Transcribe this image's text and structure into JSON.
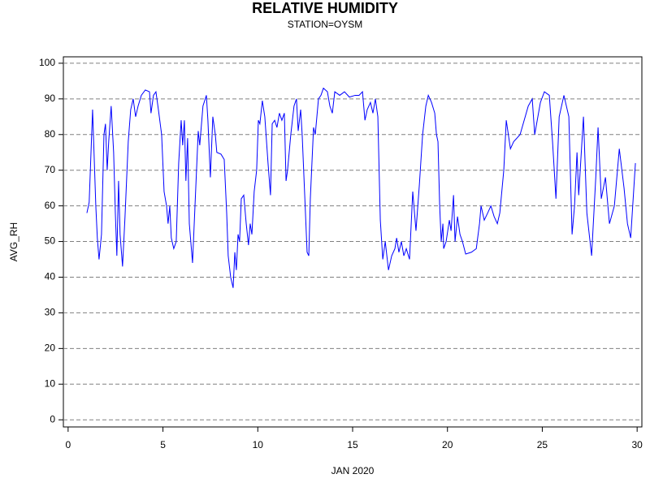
{
  "chart_data": {
    "type": "line",
    "title": "RELATIVE HUMIDITY",
    "subtitle": "STATION=OYSM",
    "x_label": "JAN 2020",
    "y_label": "AVG_RH",
    "xlim": [
      -0.25,
      30.25
    ],
    "xticks": [
      0,
      5,
      10,
      15,
      20,
      25,
      30
    ],
    "ylim": [
      -2,
      101.8
    ],
    "yticks": [
      0,
      10,
      20,
      30,
      40,
      50,
      60,
      70,
      80,
      90,
      100
    ],
    "grid": true,
    "x": [
      0.99,
      1.11,
      1.29,
      1.46,
      1.54,
      1.63,
      1.76,
      1.89,
      1.97,
      2.06,
      2.14,
      2.27,
      2.4,
      2.49,
      2.57,
      2.66,
      2.74,
      2.87,
      3.0,
      3.17,
      3.3,
      3.43,
      3.56,
      3.69,
      3.86,
      4.07,
      4.29,
      4.37,
      4.5,
      4.63,
      4.76,
      4.93,
      5.06,
      5.19,
      5.27,
      5.36,
      5.44,
      5.57,
      5.7,
      5.83,
      5.96,
      6.04,
      6.13,
      6.21,
      6.3,
      6.39,
      6.56,
      6.73,
      6.86,
      6.94,
      7.11,
      7.29,
      7.37,
      7.5,
      7.63,
      7.76,
      7.84,
      8.06,
      8.23,
      8.36,
      8.44,
      8.57,
      8.7,
      8.79,
      8.87,
      8.96,
      9.04,
      9.13,
      9.26,
      9.39,
      9.51,
      9.6,
      9.69,
      9.81,
      9.94,
      10.03,
      10.11,
      10.24,
      10.37,
      10.54,
      10.67,
      10.76,
      10.89,
      11.01,
      11.14,
      11.27,
      11.4,
      11.49,
      11.57,
      11.74,
      11.91,
      12.04,
      12.13,
      12.26,
      12.34,
      12.6,
      12.69,
      12.77,
      12.94,
      13.03,
      13.2,
      13.33,
      13.46,
      13.67,
      13.8,
      13.93,
      14.06,
      14.32,
      14.57,
      14.83,
      15.13,
      15.34,
      15.52,
      15.65,
      15.77,
      15.94,
      16.07,
      16.2,
      16.33,
      16.46,
      16.59,
      16.72,
      16.89,
      17.06,
      17.23,
      17.32,
      17.44,
      17.57,
      17.7,
      17.83,
      18.0,
      18.17,
      18.34,
      18.52,
      18.69,
      18.86,
      18.99,
      19.16,
      19.33,
      19.42,
      19.5,
      19.59,
      19.67,
      19.76,
      19.8,
      19.93,
      20.1,
      20.19,
      20.32,
      20.4,
      20.53,
      20.66,
      20.79,
      20.96,
      21.26,
      21.52,
      21.69,
      21.77,
      21.94,
      22.12,
      22.29,
      22.46,
      22.63,
      22.76,
      22.97,
      23.1,
      23.32,
      23.49,
      23.83,
      24.26,
      24.47,
      24.6,
      24.9,
      25.11,
      25.37,
      25.54,
      25.72,
      25.89,
      26.14,
      26.4,
      26.57,
      26.7,
      26.83,
      26.92,
      27.17,
      27.35,
      27.6,
      27.82,
      27.94,
      28.11,
      28.33,
      28.54,
      28.8,
      29.06,
      29.31,
      29.49,
      29.66,
      29.91
    ],
    "series": [
      {
        "name": "AVG_RH",
        "color": "#0000ff",
        "values": [
          58,
          61,
          87,
          60,
          51,
          45,
          52,
          80,
          83,
          70,
          78,
          88,
          75,
          58,
          46,
          67,
          52,
          43,
          57,
          78,
          87,
          90,
          85,
          88,
          91,
          92.5,
          92,
          86,
          91,
          92,
          87,
          80,
          64,
          60,
          55,
          60,
          51,
          48,
          50,
          72,
          84,
          77,
          84,
          67,
          79,
          55,
          44,
          65,
          81,
          77,
          88,
          91,
          84,
          68,
          85,
          80,
          75,
          74.5,
          73,
          58,
          46,
          40,
          37,
          47,
          42,
          52,
          50,
          62,
          63,
          55,
          49,
          55,
          52,
          64,
          70,
          84,
          83,
          89.5,
          85,
          72,
          63,
          83,
          84,
          82,
          86,
          84,
          86,
          67,
          70,
          80,
          88,
          90,
          81,
          87,
          80,
          47,
          46,
          62,
          82,
          80,
          90,
          91,
          93,
          92,
          88,
          86,
          92,
          91,
          92,
          90.5,
          91,
          91,
          92,
          84,
          87,
          89,
          86,
          90,
          85,
          56,
          45,
          50,
          42,
          46,
          48,
          51,
          47,
          50,
          46,
          48,
          45,
          64,
          53,
          66,
          80,
          88,
          91,
          89,
          86,
          80,
          78,
          60,
          50,
          55,
          48,
          50,
          56,
          53,
          63,
          50,
          57,
          52,
          50,
          46.5,
          47,
          48,
          55,
          60,
          56,
          58,
          60,
          57,
          55,
          58,
          70,
          84,
          76,
          78,
          80,
          88,
          90,
          80,
          89,
          92,
          91,
          78,
          62,
          85,
          91,
          85,
          52,
          60,
          75,
          63,
          85,
          58,
          46,
          68,
          82,
          62,
          68,
          55,
          60,
          76,
          65,
          55,
          51,
          72
        ]
      }
    ]
  }
}
